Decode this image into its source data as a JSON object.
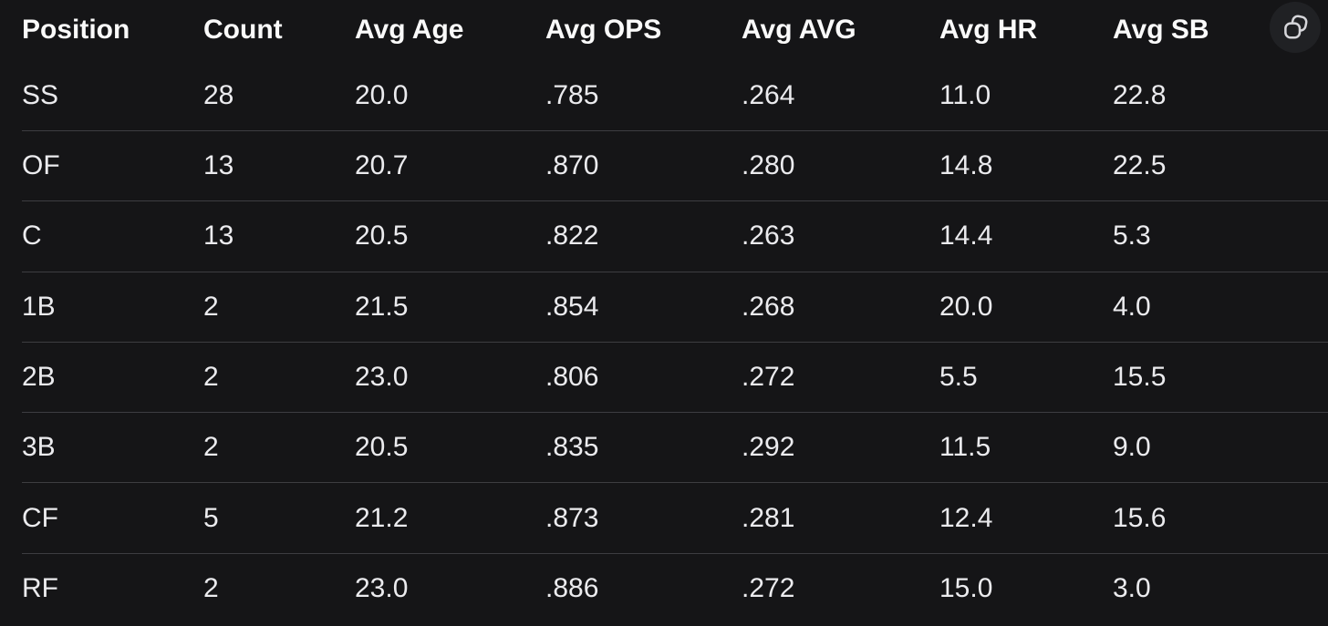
{
  "page": {
    "background_color": "#151517",
    "text_color": "#ebebee",
    "divider_color": "#3d3d41"
  },
  "toolbar": {
    "copy_button": {
      "icon": "copy-icon",
      "background_color": "#202124",
      "icon_color": "#d6d6da"
    }
  },
  "table": {
    "columns": [
      "Position",
      "Count",
      "Avg Age",
      "Avg OPS",
      "Avg AVG",
      "Avg HR",
      "Avg SB"
    ],
    "rows": [
      [
        "SS",
        "28",
        "20.0",
        ".785",
        ".264",
        "11.0",
        "22.8"
      ],
      [
        "OF",
        "13",
        "20.7",
        ".870",
        ".280",
        "14.8",
        "22.5"
      ],
      [
        "C",
        "13",
        "20.5",
        ".822",
        ".263",
        "14.4",
        "5.3"
      ],
      [
        "1B",
        "2",
        "21.5",
        ".854",
        ".268",
        "20.0",
        "4.0"
      ],
      [
        "2B",
        "2",
        "23.0",
        ".806",
        ".272",
        "5.5",
        "15.5"
      ],
      [
        "3B",
        "2",
        "20.5",
        ".835",
        ".292",
        "11.5",
        "9.0"
      ],
      [
        "CF",
        "5",
        "21.2",
        ".873",
        ".281",
        "12.4",
        "15.6"
      ],
      [
        "RF",
        "2",
        "23.0",
        ".886",
        ".272",
        "15.0",
        "3.0"
      ]
    ]
  }
}
